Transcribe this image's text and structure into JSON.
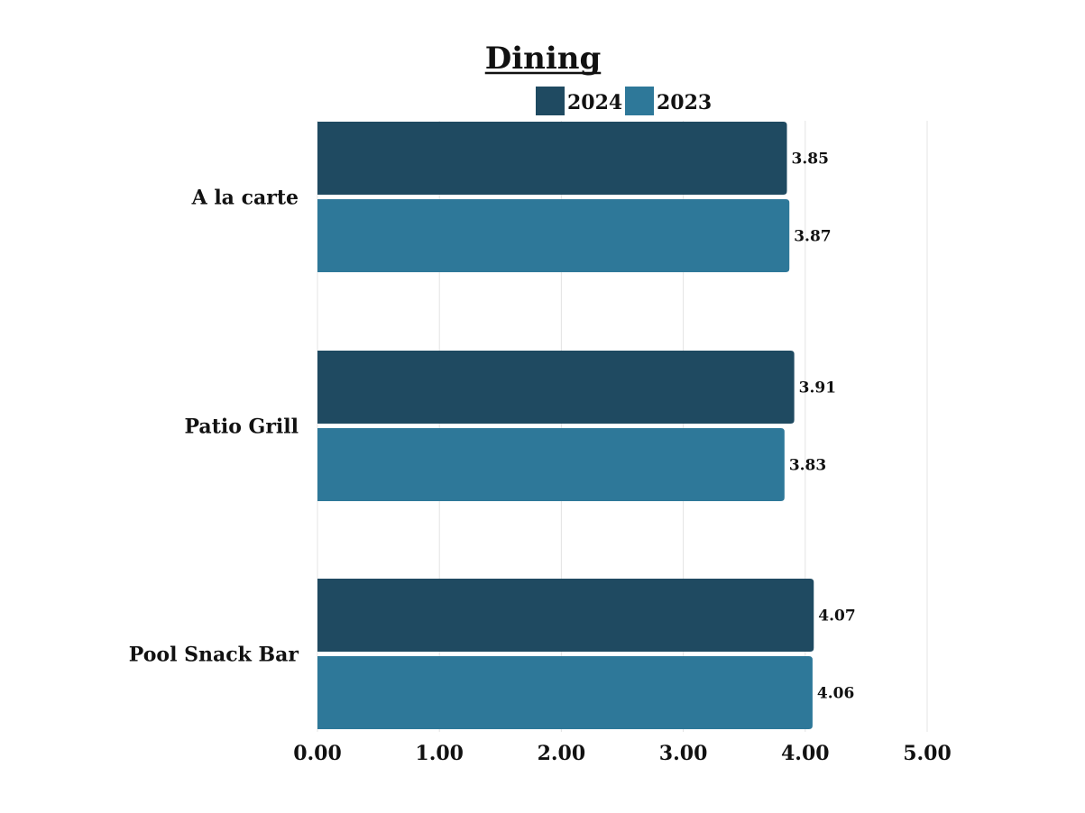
{
  "chart_data": {
    "type": "bar",
    "orientation": "horizontal",
    "title": "Dining",
    "xlabel": "",
    "ylabel": "",
    "xlim": [
      0,
      5
    ],
    "x_ticks": [
      "0.00",
      "1.00",
      "2.00",
      "3.00",
      "4.00",
      "5.00"
    ],
    "categories": [
      "A la carte",
      "Patio Grill",
      "Pool Snack Bar"
    ],
    "series": [
      {
        "name": "2024",
        "color": "#1f4a61",
        "values": [
          3.85,
          3.91,
          4.07
        ],
        "labels": [
          "3.85",
          "3.91",
          "4.07"
        ]
      },
      {
        "name": "2023",
        "color": "#2e7899",
        "values": [
          3.87,
          3.83,
          4.06
        ],
        "labels": [
          "3.87",
          "3.83",
          "4.06"
        ]
      }
    ],
    "grid": "vertical",
    "legend_position": "top-center"
  }
}
